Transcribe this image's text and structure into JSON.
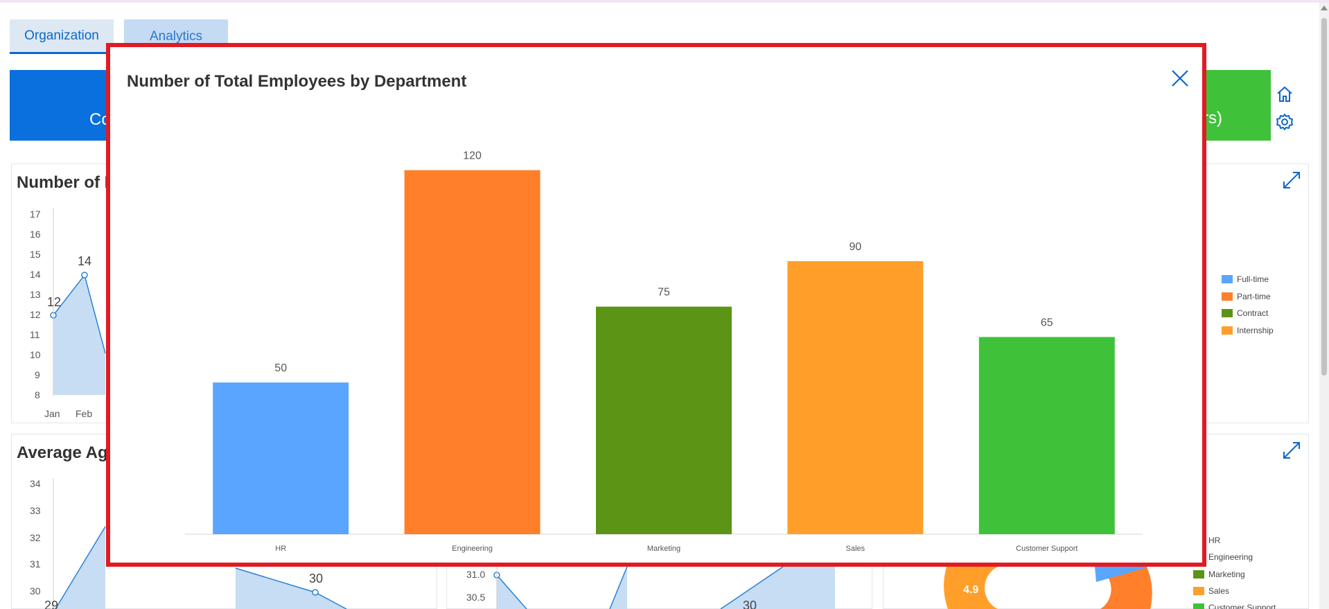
{
  "tabs": [
    {
      "label": "Organization"
    },
    {
      "label": "Analytics"
    }
  ],
  "tiles": {
    "left_fragment": "Co",
    "right_fragment": "(Yrs)"
  },
  "icons": {
    "home": "home-icon",
    "settings": "gear-icon",
    "expand": "expand-icon",
    "close": "close-icon"
  },
  "background": {
    "card1": {
      "title_fragment": "Number of E",
      "yticks": [
        "17",
        "16",
        "15",
        "14",
        "13",
        "12",
        "11",
        "10",
        "9",
        "8"
      ],
      "xticks": [
        "Jan",
        "Feb"
      ],
      "point_labels": [
        "12",
        "14"
      ]
    },
    "card2": {
      "title_fragment": "Average Ag",
      "yticks": [
        "34",
        "33",
        "32",
        "31",
        "30"
      ],
      "point_labels": [
        "29",
        "30"
      ]
    },
    "card3": {
      "yticks": [
        "31.0",
        "30.5"
      ],
      "point_labels": [
        "30"
      ]
    },
    "legend_top": [
      {
        "label": "Full-time",
        "color": "#5aa5ff"
      },
      {
        "label": "Part-time",
        "color": "#ff7f2a"
      },
      {
        "label": "Contract",
        "color": "#5c9416"
      },
      {
        "label": "Internship",
        "color": "#ff9f2a"
      }
    ],
    "legend_bottom": [
      {
        "label": "HR",
        "color": "#5aa5ff"
      },
      {
        "label": "Engineering",
        "color": "#ff7f2a"
      },
      {
        "label": "Marketing",
        "color": "#5c9416"
      },
      {
        "label": "Sales",
        "color": "#ff9f2a"
      },
      {
        "label": "Customer Support",
        "color": "#3fc23a"
      }
    ],
    "donut_label": "4.9"
  },
  "modal": {
    "title": "Number of Total Employees by Department"
  },
  "chart_data": {
    "type": "bar",
    "title": "Number of Total Employees by Department",
    "categories": [
      "HR",
      "Engineering",
      "Marketing",
      "Sales",
      "Customer Support"
    ],
    "values": [
      50,
      120,
      75,
      90,
      65
    ],
    "colors": [
      "#5aa5ff",
      "#ff7f2a",
      "#5c9416",
      "#ff9f2a",
      "#3fc23a"
    ],
    "ylim": [
      0,
      140
    ],
    "grid": false
  }
}
